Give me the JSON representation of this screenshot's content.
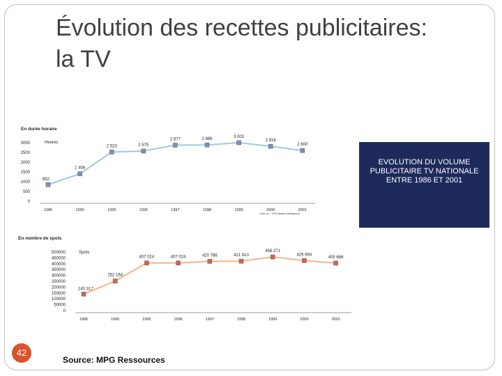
{
  "slide": {
    "title_line1": "Évolution des recettes publicitaires:",
    "title_line2": "la TV",
    "info_box": "EVOLUTION DU VOLUME PUBLICITAIRE TV NATIONALE ENTRE 1986 ET 2001",
    "page_number": "42",
    "source": "Source: MPG Ressources"
  },
  "colors": {
    "chart1_line": "#9ec9dd",
    "chart1_marker": "#7f8fc2",
    "chart2_line": "#f2b48a",
    "chart2_marker": "#d9614a",
    "info_box_bg": "#1f2a5c",
    "page_number_bg": "#d9542b"
  },
  "chart_data": [
    {
      "type": "line",
      "title": "En durée horaire",
      "series_label": "Heures",
      "note": "Sour ce : TNS Media Intelligence",
      "categories": [
        "1986",
        "1990",
        "1995",
        "1996",
        "1997",
        "1998",
        "1999",
        "2000",
        "2001"
      ],
      "values": [
        852,
        1408,
        2523,
        2575,
        2877,
        2886,
        3003,
        2816,
        2600
      ],
      "data_labels": [
        "852",
        "1 408",
        "2 523",
        "2 575",
        "2 877",
        "2 886",
        "3 003",
        "2 816",
        "2 600"
      ],
      "yticks": [
        "3000",
        "2500",
        "2000",
        "1500",
        "1000",
        "500",
        "0"
      ],
      "ylim": [
        0,
        3000
      ],
      "grid": false
    },
    {
      "type": "line",
      "title": "En nombre de spots",
      "series_label": "Spots",
      "categories": [
        "1986",
        "1990",
        "1995",
        "1996",
        "1997",
        "1998",
        "1999",
        "2000",
        "2001"
      ],
      "values": [
        140317,
        252164,
        407024,
        407024,
        420766,
        421910,
        458271,
        426694,
        405666
      ],
      "data_labels": [
        "140 317",
        "252 164",
        "407 024",
        "407 024",
        "420 766",
        "421 910",
        "458 271",
        "426 694",
        "405 666"
      ],
      "yticks": [
        "500000",
        "450000",
        "400000",
        "350000",
        "300000",
        "250000",
        "200000",
        "150000",
        "100000",
        "50000",
        "0"
      ],
      "ylim": [
        0,
        500000
      ],
      "grid": false
    }
  ]
}
